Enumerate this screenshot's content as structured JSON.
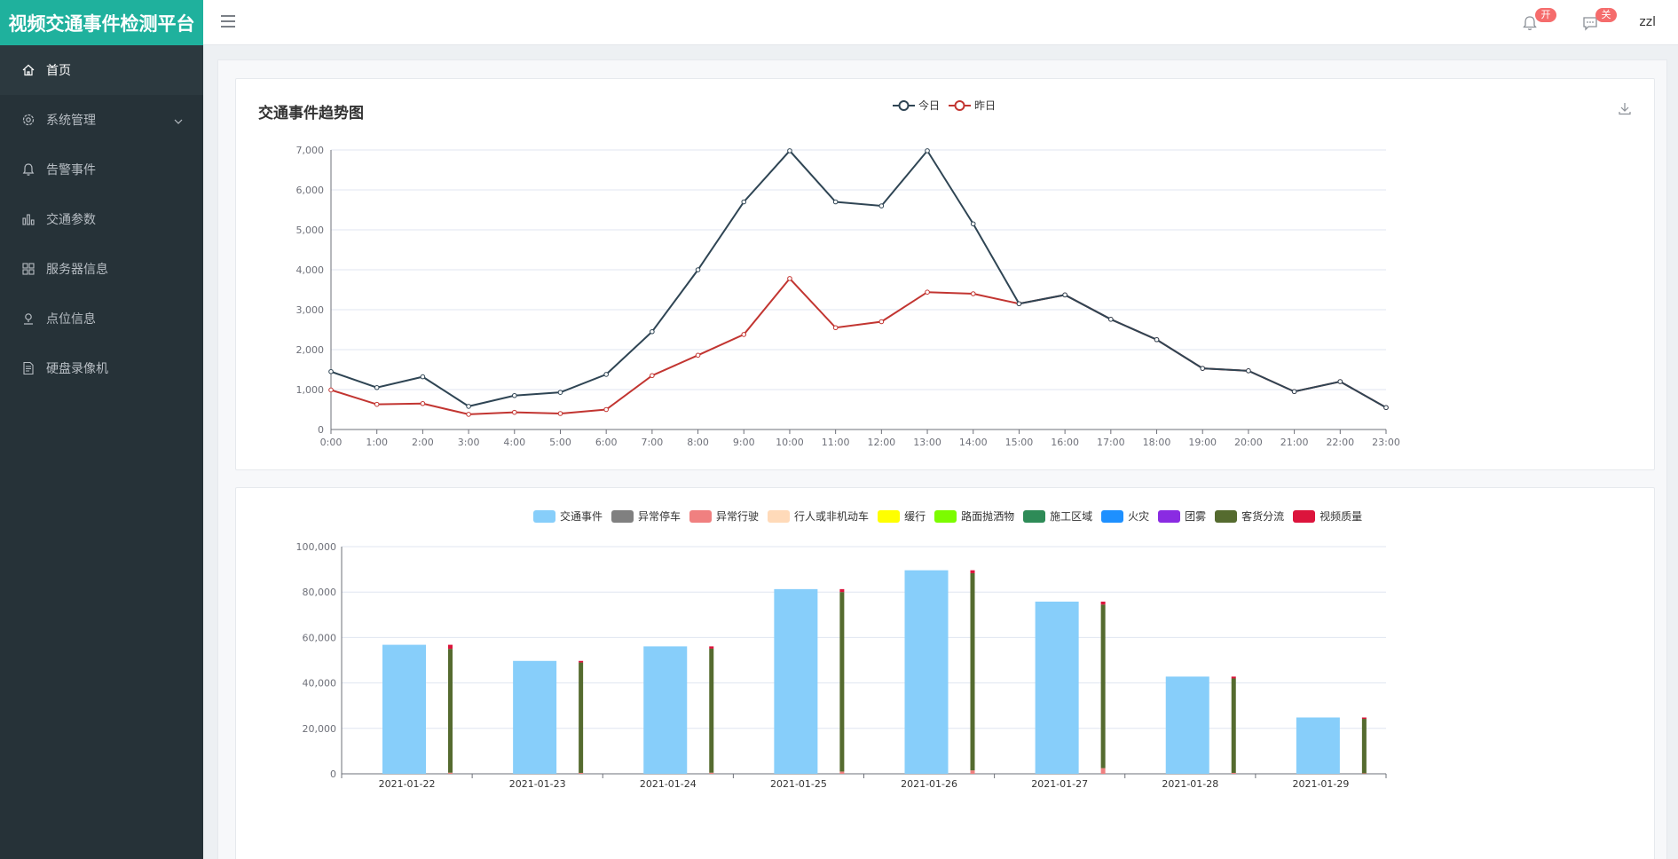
{
  "app": {
    "title": "视频交通事件检测平台"
  },
  "header": {
    "bell_badge": "开",
    "message_badge": "关",
    "username": "zzl"
  },
  "sidebar": {
    "items": [
      {
        "label": "首页",
        "icon": "home-icon"
      },
      {
        "label": "系统管理",
        "icon": "settings-icon"
      },
      {
        "label": "告警事件",
        "icon": "bell-icon"
      },
      {
        "label": "交通参数",
        "icon": "bar-chart-icon"
      },
      {
        "label": "服务器信息",
        "icon": "grid-icon"
      },
      {
        "label": "点位信息",
        "icon": "location-icon"
      },
      {
        "label": "硬盘录像机",
        "icon": "document-icon"
      }
    ]
  },
  "colors": {
    "brand": "#1fb19d",
    "sidebar_bg": "#263238",
    "today_line": "#2f4554",
    "yesterday_line": "#c23531"
  },
  "chart_data": [
    {
      "type": "line",
      "title": "交通事件趋势图",
      "x": [
        "0:00",
        "1:00",
        "2:00",
        "3:00",
        "4:00",
        "5:00",
        "6:00",
        "7:00",
        "8:00",
        "9:00",
        "10:00",
        "11:00",
        "12:00",
        "13:00",
        "14:00",
        "15:00",
        "16:00",
        "17:00",
        "18:00",
        "19:00",
        "20:00",
        "21:00",
        "22:00",
        "23:00"
      ],
      "ylim": [
        0,
        7000
      ],
      "yticks": [
        "0",
        "1,000",
        "2,000",
        "3,000",
        "4,000",
        "5,000",
        "6,000",
        "7,000"
      ],
      "legend_position": "top-center",
      "series": [
        {
          "name": "今日",
          "color": "#2f4554",
          "values": [
            1450,
            1050,
            1320,
            580,
            850,
            930,
            1380,
            2450,
            4000,
            5700,
            6980,
            5700,
            5600,
            6980,
            5150,
            3150,
            3370,
            2760,
            2250,
            1530,
            1470,
            950,
            1200,
            550
          ]
        },
        {
          "name": "昨日",
          "color": "#c23531",
          "values": [
            990,
            630,
            650,
            380,
            430,
            400,
            500,
            1350,
            1860,
            2380,
            3780,
            2550,
            2700,
            3440,
            3400,
            3150,
            3370,
            2760,
            2250,
            1530,
            1470,
            950,
            1200,
            550
          ]
        }
      ]
    },
    {
      "type": "bar",
      "categories": [
        "2021-01-22",
        "2021-01-23",
        "2021-01-24",
        "2021-01-25",
        "2021-01-26",
        "2021-01-27",
        "2021-01-28",
        "2021-01-29"
      ],
      "ylim": [
        0,
        100000
      ],
      "yticks": [
        "0",
        "20,000",
        "40,000",
        "60,000",
        "80,000",
        "100,000"
      ],
      "legend_position": "top-center",
      "legend": [
        {
          "name": "交通事件",
          "color": "#87cefa"
        },
        {
          "name": "异常停车",
          "color": "#808080"
        },
        {
          "name": "异常行驶",
          "color": "#f08080"
        },
        {
          "name": "行人或非机动车",
          "color": "#ffdab9"
        },
        {
          "name": "缓行",
          "color": "#ffff00"
        },
        {
          "name": "路面抛洒物",
          "color": "#7cfc00"
        },
        {
          "name": "施工区域",
          "color": "#2e8b57"
        },
        {
          "name": "火灾",
          "color": "#1e90ff"
        },
        {
          "name": "团雾",
          "color": "#8a2be2"
        },
        {
          "name": "客货分流",
          "color": "#556b2f"
        },
        {
          "name": "视频质量",
          "color": "#dc143c"
        }
      ],
      "series": [
        {
          "name": "交通事件",
          "values": [
            56800,
            49700,
            56100,
            81300,
            89600,
            75800,
            42800,
            24800
          ]
        },
        {
          "name": "异常行驶",
          "values": [
            500,
            400,
            500,
            1000,
            1500,
            2500,
            400,
            200
          ]
        },
        {
          "name": "客货分流",
          "values": [
            54500,
            48600,
            54600,
            79000,
            86800,
            72000,
            41600,
            24000
          ]
        },
        {
          "name": "视频质量",
          "values": [
            1800,
            700,
            1000,
            1300,
            1300,
            1300,
            800,
            600
          ]
        }
      ]
    }
  ]
}
